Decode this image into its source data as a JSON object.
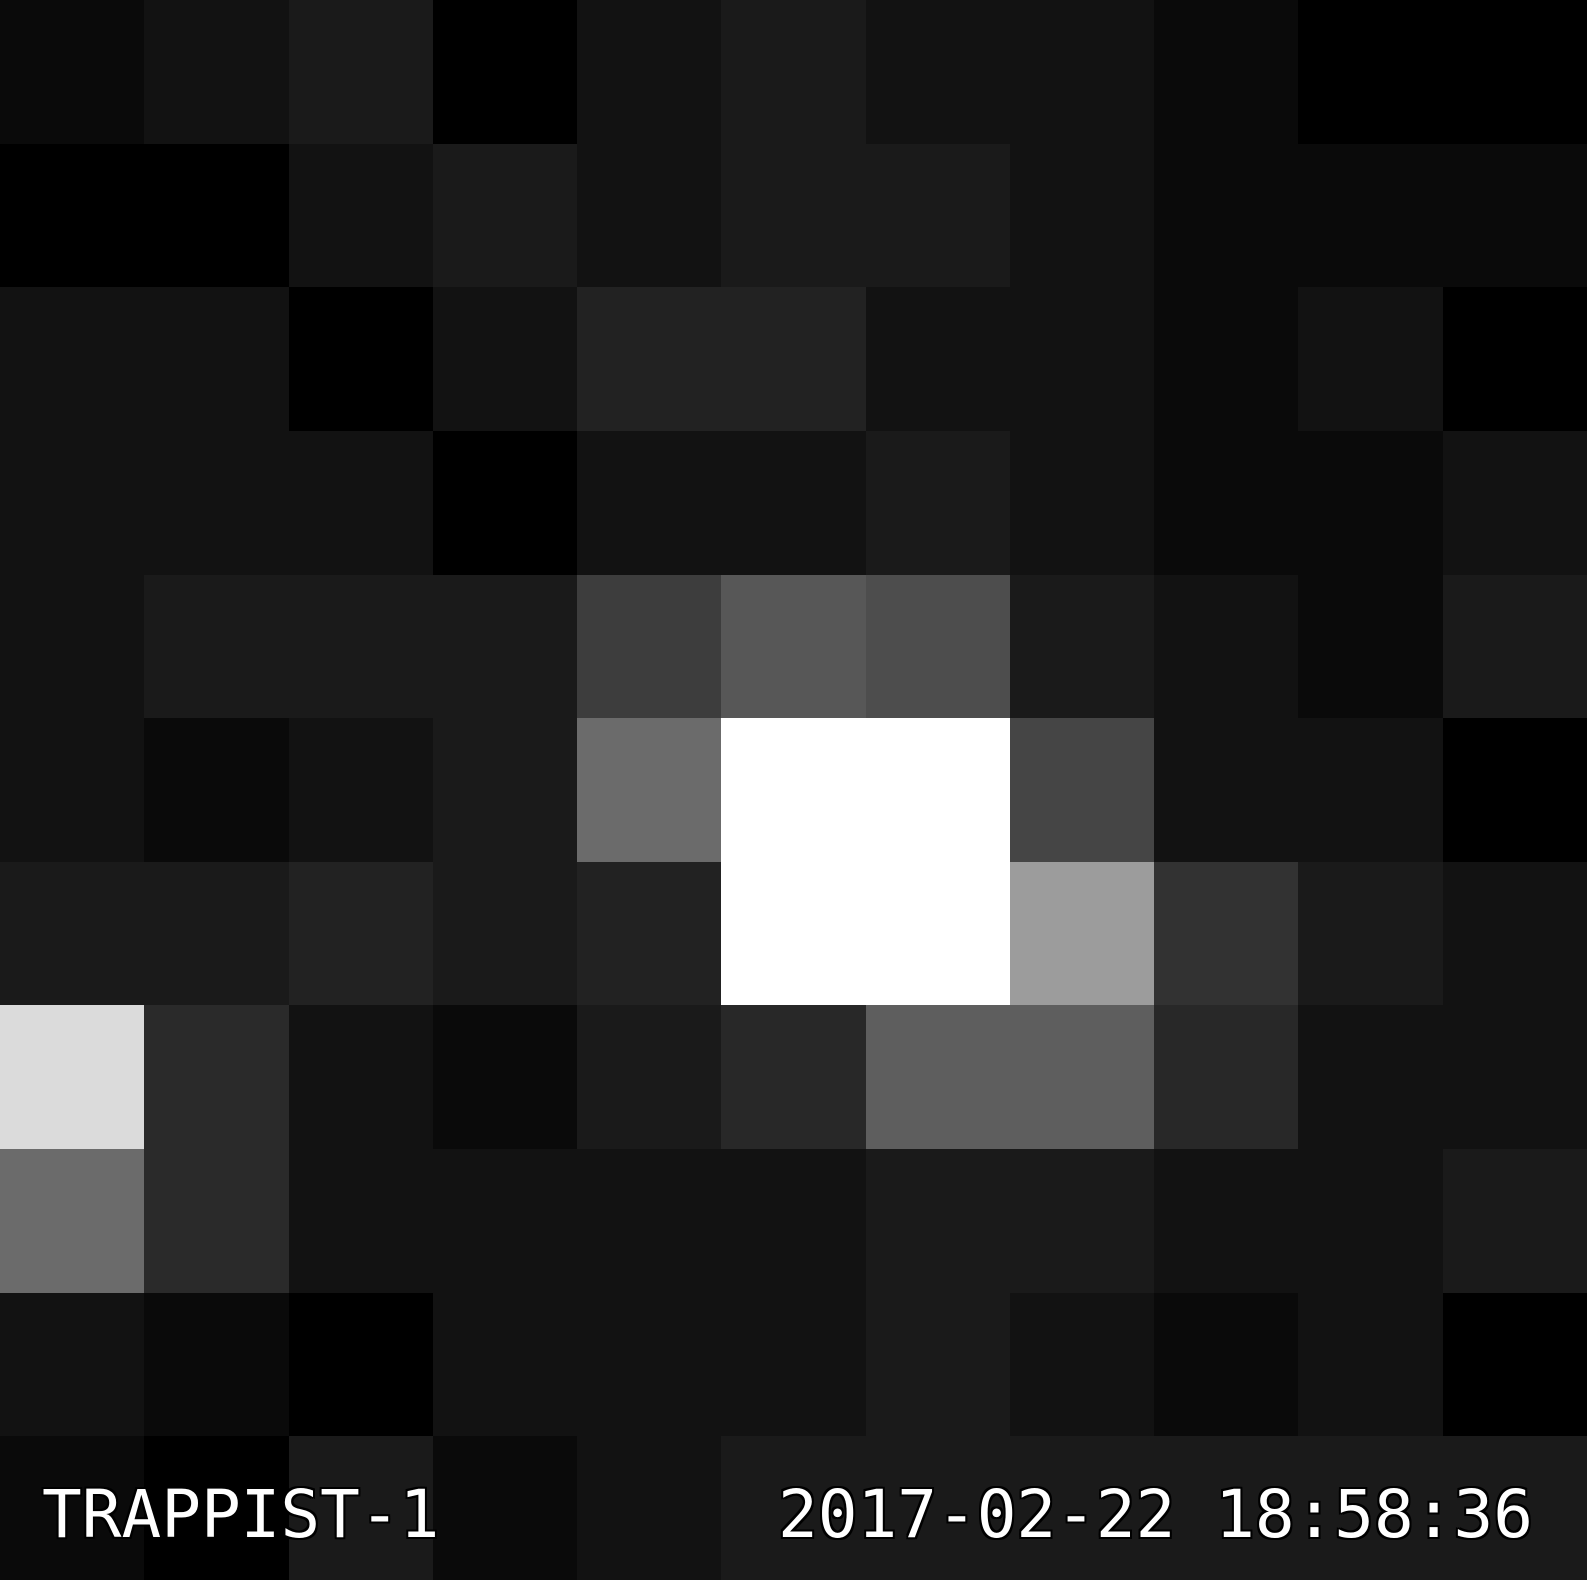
{
  "image": {
    "target_name": "TRAPPIST-1",
    "timestamp": "2017-02-22 18:58:36",
    "grid_columns": 11,
    "grid_rows": 11,
    "pixel_intensities": [
      [
        10,
        18,
        26,
        0,
        18,
        26,
        18,
        18,
        10,
        0,
        0
      ],
      [
        0,
        0,
        18,
        26,
        18,
        26,
        26,
        18,
        10,
        10,
        10
      ],
      [
        18,
        18,
        0,
        18,
        34,
        34,
        18,
        18,
        10,
        18,
        0
      ],
      [
        18,
        18,
        18,
        0,
        18,
        18,
        26,
        18,
        10,
        10,
        18
      ],
      [
        18,
        26,
        26,
        26,
        61,
        87,
        77,
        26,
        18,
        10,
        26
      ],
      [
        18,
        10,
        18,
        26,
        107,
        255,
        255,
        69,
        18,
        18,
        0
      ],
      [
        26,
        26,
        34,
        26,
        34,
        255,
        255,
        156,
        50,
        26,
        18
      ],
      [
        219,
        42,
        18,
        10,
        26,
        40,
        94,
        94,
        40,
        18,
        18
      ],
      [
        107,
        42,
        18,
        18,
        18,
        18,
        26,
        26,
        18,
        18,
        26
      ],
      [
        18,
        10,
        0,
        18,
        18,
        18,
        26,
        18,
        10,
        18,
        0
      ],
      [
        10,
        0,
        26,
        10,
        18,
        26,
        26,
        26,
        26,
        26,
        26
      ]
    ]
  }
}
